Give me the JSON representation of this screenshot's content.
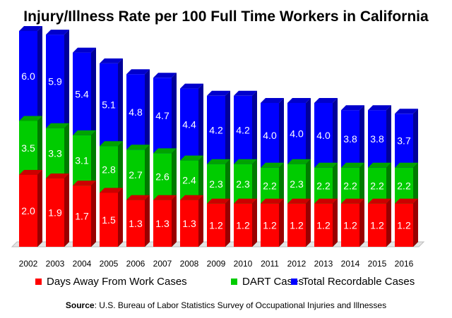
{
  "chart_data": {
    "type": "bar",
    "stacked": false,
    "overlapping": true,
    "title": "Injury/Illness Rate per 100 Full Time Workers in California",
    "categories": [
      "2002",
      "2003",
      "2004",
      "2005",
      "2006",
      "2007",
      "2008",
      "2009",
      "2010",
      "2011",
      "2012",
      "2013",
      "2014",
      "2015",
      "2016"
    ],
    "series": [
      {
        "name": "Total Recordable Cases",
        "color": "#0000ff",
        "values": [
          6.0,
          5.9,
          5.4,
          5.1,
          4.8,
          4.7,
          4.4,
          4.2,
          4.2,
          4.0,
          4.0,
          4.0,
          3.8,
          3.8,
          3.7
        ]
      },
      {
        "name": "DART Cases",
        "color": "#00cc00",
        "values": [
          3.5,
          3.3,
          3.1,
          2.8,
          2.7,
          2.6,
          2.4,
          2.3,
          2.3,
          2.2,
          2.3,
          2.2,
          2.2,
          2.2,
          2.2
        ]
      },
      {
        "name": "Days Away From Work Cases",
        "color": "#ff0000",
        "values": [
          2.0,
          1.9,
          1.7,
          1.5,
          1.3,
          1.3,
          1.3,
          1.2,
          1.2,
          1.2,
          1.2,
          1.2,
          1.2,
          1.2,
          1.2
        ]
      }
    ],
    "legend_order": [
      "Days Away From Work Cases",
      "DART Cases",
      "Total Recordable Cases"
    ],
    "legend_position": "bottom",
    "xlabel": "",
    "ylabel": "",
    "ylim": [
      0,
      6.0
    ],
    "grid": false
  },
  "source": {
    "label": "Source",
    "text": ": U.S. Bureau of Labor Statistics Survey of Occupational Injuries and Illnesses"
  }
}
